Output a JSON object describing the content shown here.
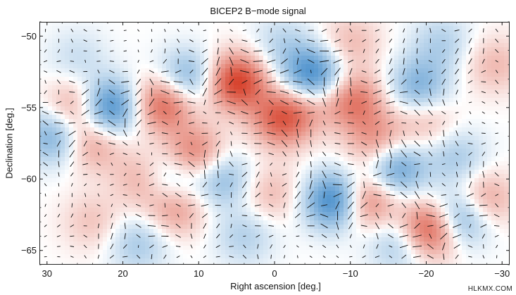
{
  "chart_data": {
    "type": "heatmap",
    "title": "BICEP2 B−mode signal",
    "xlabel": "Right ascension [deg.]",
    "ylabel": "Declination [deg.]",
    "xlim": [
      31,
      -31
    ],
    "ylim": [
      -66,
      -49
    ],
    "x_ticks": [
      30,
      20,
      10,
      0,
      -10,
      -20,
      -30
    ],
    "x_tick_labels": [
      "30",
      "20",
      "10",
      "0",
      "−10",
      "−20",
      "−30"
    ],
    "y_ticks": [
      -50,
      -55,
      -60,
      -65
    ],
    "y_tick_labels": [
      "−50",
      "−55",
      "−60",
      "−65"
    ],
    "colormap": {
      "negative": "#2f7fc4",
      "zero": "#ffffff",
      "positive": "#d6402a"
    },
    "overlay": "polarization line segments",
    "blobs": [
      {
        "ra": 5,
        "dec": -53.2,
        "amp": 1.0
      },
      {
        "ra": 14.5,
        "dec": -54.7,
        "amp": 0.8
      },
      {
        "ra": 26,
        "dec": -55,
        "amp": 0.55
      },
      {
        "ra": 24,
        "dec": -57.5,
        "amp": 0.45
      },
      {
        "ra": 10.5,
        "dec": -58.3,
        "amp": 0.65
      },
      {
        "ra": 17,
        "dec": -60,
        "amp": 0.45
      },
      {
        "ra": 13,
        "dec": -62,
        "amp": 0.5
      },
      {
        "ra": -1,
        "dec": -55.8,
        "amp": 0.8
      },
      {
        "ra": -4.5,
        "dec": -54.5,
        "amp": 0.3
      },
      {
        "ra": -10.5,
        "dec": -54.5,
        "amp": 0.65
      },
      {
        "ra": -13.5,
        "dec": -57.3,
        "amp": 0.5
      },
      {
        "ra": -12,
        "dec": -61.5,
        "amp": 0.75
      },
      {
        "ra": -20.5,
        "dec": -63.5,
        "amp": 0.95
      },
      {
        "ra": -27.5,
        "dec": -61.5,
        "amp": 0.5
      },
      {
        "ra": -20,
        "dec": -56,
        "amp": 0.3
      },
      {
        "ra": -10,
        "dec": -50.5,
        "amp": 0.3
      },
      {
        "ra": 0.5,
        "dec": -61,
        "amp": 0.3
      },
      {
        "ra": 24,
        "dec": -63,
        "amp": 0.25
      },
      {
        "ra": -29,
        "dec": -52,
        "amp": 0.3
      },
      {
        "ra": 22,
        "dec": -55,
        "amp": -0.95
      },
      {
        "ra": 29,
        "dec": -57,
        "amp": -0.6
      },
      {
        "ra": 11.5,
        "dec": -53,
        "amp": -0.6
      },
      {
        "ra": 14,
        "dec": -60,
        "amp": -0.55
      },
      {
        "ra": 7,
        "dec": -60,
        "amp": -0.5
      },
      {
        "ra": -5,
        "dec": -52.8,
        "amp": -0.95
      },
      {
        "ra": -8,
        "dec": -61.5,
        "amp": -1.0
      },
      {
        "ra": -16,
        "dec": -59.3,
        "amp": -0.7
      },
      {
        "ra": -19,
        "dec": -53.5,
        "amp": -0.55
      },
      {
        "ra": -24,
        "dec": -58.5,
        "amp": -0.35
      },
      {
        "ra": -24.5,
        "dec": -62.7,
        "amp": -0.75
      },
      {
        "ra": -16.5,
        "dec": -64.5,
        "amp": -0.4
      },
      {
        "ra": 4,
        "dec": -64,
        "amp": -0.3
      },
      {
        "ra": 18,
        "dec": -64.5,
        "amp": -0.35
      },
      {
        "ra": -1,
        "dec": -50.5,
        "amp": -0.25
      },
      {
        "ra": -22,
        "dec": -50.5,
        "amp": -0.3
      },
      {
        "ra": 26,
        "dec": -51.5,
        "amp": -0.2
      }
    ],
    "grid": false
  },
  "watermark": "HLKMX.COM"
}
